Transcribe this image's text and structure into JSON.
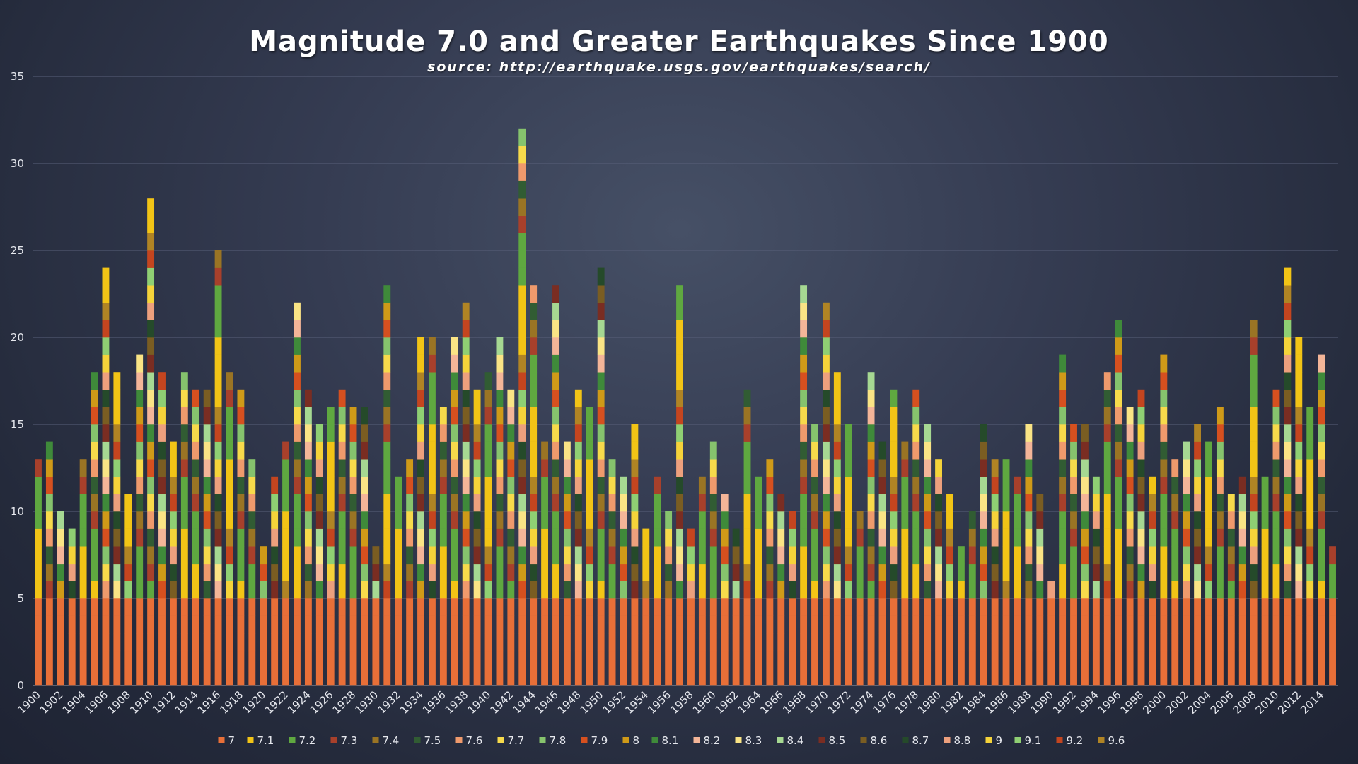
{
  "chart_data": {
    "type": "bar",
    "stacked": true,
    "title": "Magnitude 7.0 and Greater Earthquakes Since 1900",
    "subtitle": "source: http://earthquake.usgs.gov/earthquakes/search/",
    "xlabel": "",
    "ylabel": "",
    "ylim": [
      0,
      35
    ],
    "yticks": [
      0,
      5,
      10,
      15,
      20,
      25,
      30,
      35
    ],
    "grid": true,
    "legend_position": "bottom",
    "x_start": 1900,
    "x_end": 2014,
    "x_tick_step": 2,
    "totals": [
      13,
      14,
      10,
      9,
      13,
      18,
      24,
      18,
      11,
      19,
      28,
      18,
      14,
      18,
      17,
      17,
      25,
      18,
      17,
      13,
      8,
      12,
      14,
      22,
      17,
      15,
      16,
      17,
      16,
      16,
      8,
      23,
      12,
      13,
      20,
      20,
      16,
      20,
      22,
      17,
      18,
      20,
      17,
      32,
      23,
      14,
      23,
      14,
      17,
      16,
      24,
      13,
      12,
      15,
      9,
      12,
      10,
      23,
      9,
      12,
      14,
      11,
      9,
      17,
      12,
      13,
      11,
      10,
      23,
      15,
      22,
      18,
      15,
      10,
      18,
      14,
      17,
      14,
      17,
      15,
      13,
      11,
      8,
      10,
      15,
      13,
      13,
      12,
      15,
      11,
      6,
      19,
      15,
      15,
      12,
      18,
      21,
      16,
      17,
      12,
      19,
      13,
      14,
      15,
      14,
      16,
      11,
      12,
      21,
      12,
      17,
      24,
      20,
      16,
      19,
      8
    ],
    "series": [
      {
        "name": "7",
        "color": "#e86f38"
      },
      {
        "name": "7.1",
        "color": "#f2c416"
      },
      {
        "name": "7.2",
        "color": "#5fa840"
      },
      {
        "name": "7.3",
        "color": "#a8402b"
      },
      {
        "name": "7.4",
        "color": "#9a7424"
      },
      {
        "name": "7.5",
        "color": "#315c33"
      },
      {
        "name": "7.6",
        "color": "#ef9a6c"
      },
      {
        "name": "7.7",
        "color": "#f7da4b"
      },
      {
        "name": "7.8",
        "color": "#86c36d"
      },
      {
        "name": "7.9",
        "color": "#d6501f"
      },
      {
        "name": "8",
        "color": "#cf9a18"
      },
      {
        "name": "8.1",
        "color": "#3f8a3a"
      },
      {
        "name": "8.2",
        "color": "#f4b598"
      },
      {
        "name": "8.3",
        "color": "#fae485"
      },
      {
        "name": "8.4",
        "color": "#a6d892"
      },
      {
        "name": "8.5",
        "color": "#7a2d22"
      },
      {
        "name": "8.6",
        "color": "#7a5d22"
      },
      {
        "name": "8.7",
        "color": "#254a2a"
      },
      {
        "name": "8.8",
        "color": "#eda07d"
      },
      {
        "name": "9",
        "color": "#f5d33a"
      },
      {
        "name": "9.1",
        "color": "#8fcf73"
      },
      {
        "name": "9.2",
        "color": "#c4451f"
      },
      {
        "name": "9.6",
        "color": "#b08424"
      }
    ],
    "segment_pattern": [
      0,
      0,
      0,
      0,
      0,
      1,
      1,
      1,
      1,
      2,
      2,
      2,
      3,
      4,
      5,
      6,
      7,
      8,
      9,
      10,
      11,
      12,
      13,
      14,
      15,
      16,
      17,
      18,
      19,
      20,
      21,
      22
    ]
  }
}
